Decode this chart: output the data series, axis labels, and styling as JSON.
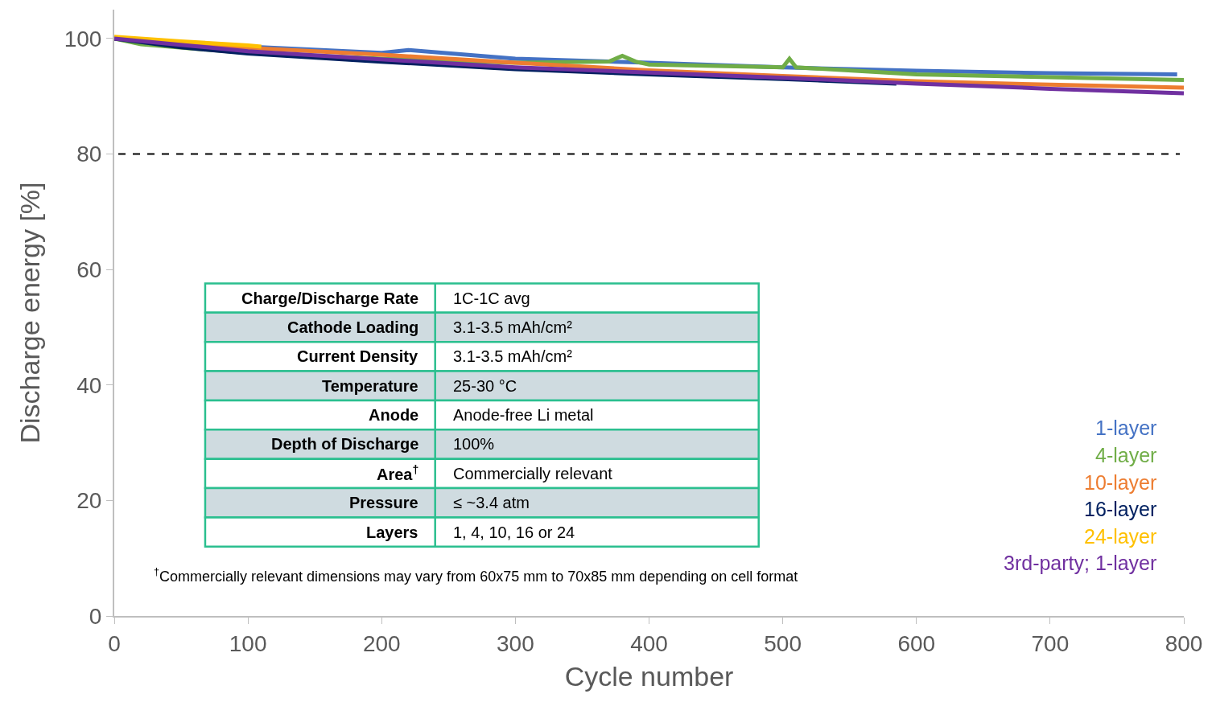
{
  "chart_data": {
    "type": "line",
    "xlabel": "Cycle number",
    "ylabel": "Discharge energy [%]",
    "xlim": [
      0,
      800
    ],
    "xticks": [
      0,
      100,
      200,
      300,
      400,
      500,
      600,
      700,
      800
    ],
    "ylim": [
      0,
      105
    ],
    "yticks": [
      0,
      20,
      40,
      60,
      80,
      100
    ],
    "grid": false,
    "legend": "bottom right",
    "marker": "none",
    "line_style": "solid",
    "series": [
      {
        "name": "1-layer",
        "color": "#4472c4",
        "x": [
          0,
          100,
          200,
          220,
          300,
          400,
          500,
          600,
          700,
          795
        ],
        "values": [
          100,
          98.6,
          97.5,
          98,
          96.5,
          95.8,
          95,
          94.4,
          94,
          93.8
        ]
      },
      {
        "name": "4-layer",
        "color": "#70ad47",
        "x": [
          0,
          20,
          100,
          200,
          300,
          370,
          380,
          390,
          400,
          500,
          505,
          510,
          600,
          700,
          800
        ],
        "values": [
          100,
          99,
          97.5,
          96.5,
          95.8,
          96,
          97,
          96,
          95.5,
          95,
          96.5,
          95,
          93.8,
          93.3,
          92.8
        ]
      },
      {
        "name": "10-layer",
        "color": "#ed7d31",
        "x": [
          0,
          100,
          200,
          300,
          400,
          500,
          600,
          700,
          800
        ],
        "values": [
          100,
          98.4,
          97.2,
          95.8,
          94.5,
          93.5,
          92.6,
          92,
          91.5
        ]
      },
      {
        "name": "16-layer",
        "color": "#002060",
        "x": [
          0,
          50,
          100,
          200,
          300,
          400,
          500,
          585
        ],
        "values": [
          100,
          98.5,
          97.4,
          96,
          94.7,
          93.8,
          93,
          92.2
        ]
      },
      {
        "name": "24-layer",
        "color": "#ffc000",
        "x": [
          0,
          50,
          100,
          110
        ],
        "values": [
          100.3,
          99.5,
          98.8,
          98.6
        ]
      },
      {
        "name": "3rd-party; 1-layer",
        "color": "#7030a0",
        "x": [
          0,
          100,
          300,
          500,
          600,
          700,
          800
        ],
        "values": [
          100,
          97.8,
          95,
          93.2,
          92.2,
          91.3,
          90.5
        ]
      }
    ],
    "ref_lines": [
      {
        "axis": "y",
        "value": 80,
        "color": "#000000",
        "line_style": "dashed"
      }
    ],
    "annotations": [
      "Charge/Discharge Rate",
      "1C-1C avg",
      "Cathode Loading",
      "3.1-3.5 mAh/cm²",
      "Current Density",
      "3.1-3.5 mAh/cm²",
      "Temperature",
      "25-30 °C",
      "Anode",
      "Anode-free Li metal",
      "Depth of Discharge",
      "100%",
      "Area$^{†}$",
      "Commercially relevant",
      "Pressure",
      "≤ ~3.4 atm",
      "Layers",
      "1, 4, 10, 16 or 24",
      "$^{†}$Commercially relevant dimensions may vary from 60x75 mm to 70x85 mm depending on cell format"
    ]
  }
}
